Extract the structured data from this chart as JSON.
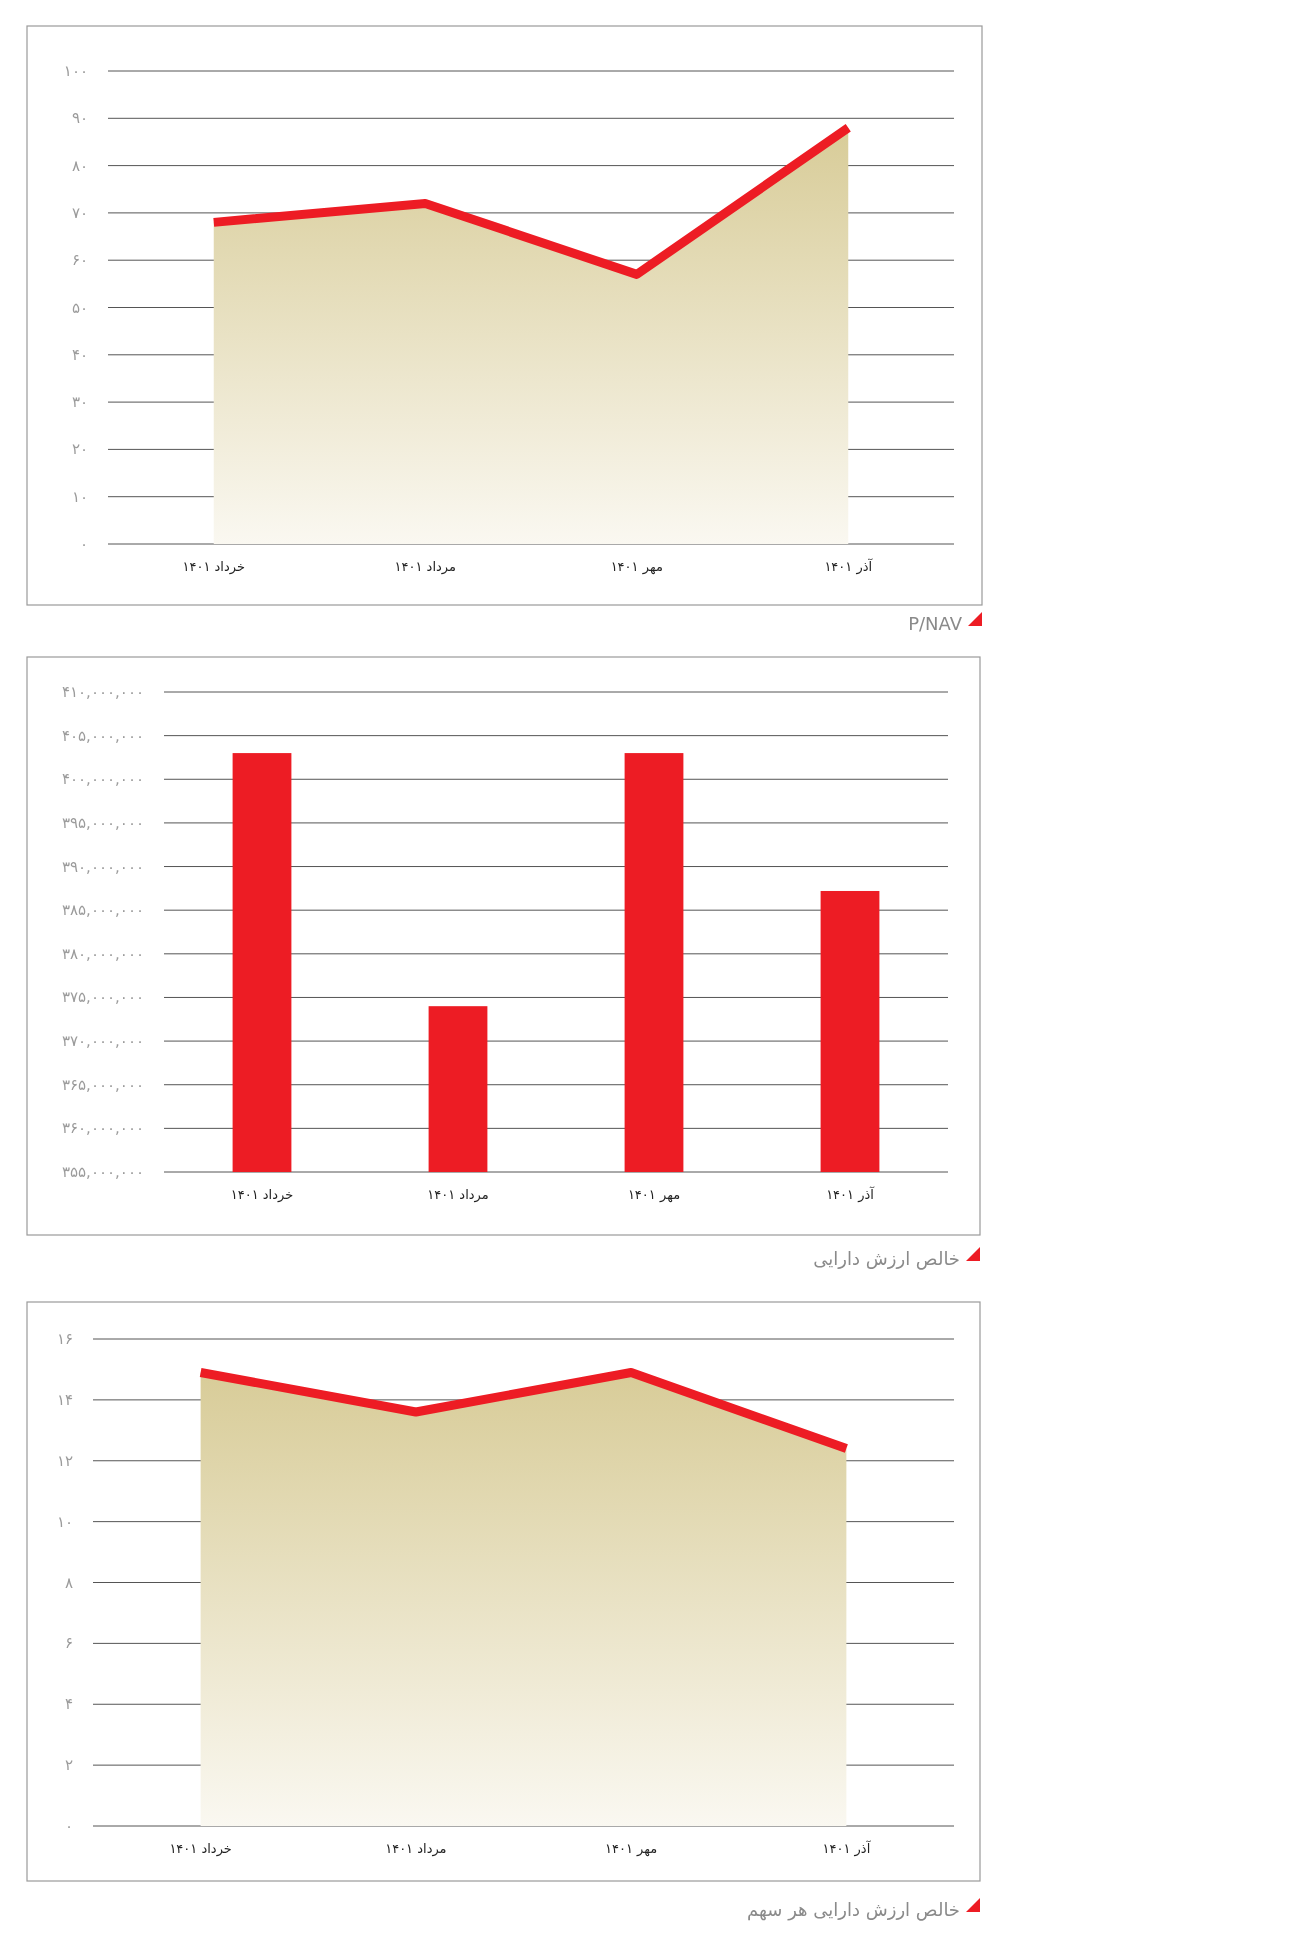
{
  "chart_data": [
    {
      "type": "area",
      "title": "P/NAV",
      "categories": [
        "خرداد ۱۴۰۱",
        "مرداد ۱۴۰۱",
        "مهر ۱۴۰۱",
        "آذر ۱۴۰۱"
      ],
      "series": [
        {
          "color": "#ed1c24",
          "values": [
            68,
            72,
            57,
            88
          ]
        }
      ],
      "ylim": [
        0,
        100
      ],
      "yticks": [
        {
          "value": 0,
          "label": "۰"
        },
        {
          "value": 10,
          "label": "۱۰"
        },
        {
          "value": 20,
          "label": "۲۰"
        },
        {
          "value": 30,
          "label": "۳۰"
        },
        {
          "value": 40,
          "label": "۴۰"
        },
        {
          "value": 50,
          "label": "۵۰"
        },
        {
          "value": 60,
          "label": "۶۰"
        },
        {
          "value": 70,
          "label": "۷۰"
        },
        {
          "value": 80,
          "label": "۸۰"
        },
        {
          "value": 90,
          "label": "۹۰"
        },
        {
          "value": 100,
          "label": "۱۰۰"
        }
      ],
      "grid": "y"
    },
    {
      "type": "bar",
      "title": "خالص ارزش دارایی",
      "categories": [
        "خرداد ۱۴۰۱",
        "مرداد ۱۴۰۱",
        "مهر ۱۴۰۱",
        "آذر ۱۴۰۱"
      ],
      "series": [
        {
          "color": "#ed1c24",
          "values": [
            403000000,
            374000000,
            403000000,
            387200000
          ]
        }
      ],
      "ylim": [
        355000000,
        410000000
      ],
      "yticks": [
        {
          "value": 355000000,
          "label": "۳۵۵,۰۰۰,۰۰۰"
        },
        {
          "value": 360000000,
          "label": "۳۶۰,۰۰۰,۰۰۰"
        },
        {
          "value": 365000000,
          "label": "۳۶۵,۰۰۰,۰۰۰"
        },
        {
          "value": 370000000,
          "label": "۳۷۰,۰۰۰,۰۰۰"
        },
        {
          "value": 375000000,
          "label": "۳۷۵,۰۰۰,۰۰۰"
        },
        {
          "value": 380000000,
          "label": "۳۸۰,۰۰۰,۰۰۰"
        },
        {
          "value": 385000000,
          "label": "۳۸۵,۰۰۰,۰۰۰"
        },
        {
          "value": 390000000,
          "label": "۳۹۰,۰۰۰,۰۰۰"
        },
        {
          "value": 395000000,
          "label": "۳۹۵,۰۰۰,۰۰۰"
        },
        {
          "value": 400000000,
          "label": "۴۰۰,۰۰۰,۰۰۰"
        },
        {
          "value": 405000000,
          "label": "۴۰۵,۰۰۰,۰۰۰"
        },
        {
          "value": 410000000,
          "label": "۴۱۰,۰۰۰,۰۰۰"
        }
      ],
      "grid": "y"
    },
    {
      "type": "area",
      "title": "خالص ارزش دارایی هر سهم",
      "categories": [
        "خرداد ۱۴۰۱",
        "مرداد ۱۴۰۱",
        "مهر ۱۴۰۱",
        "آذر ۱۴۰۱"
      ],
      "series": [
        {
          "color": "#ed1c24",
          "values": [
            14.9,
            13.6,
            14.9,
            12.4
          ]
        }
      ],
      "ylim": [
        0,
        16
      ],
      "yticks": [
        {
          "value": 0,
          "label": "۰"
        },
        {
          "value": 2,
          "label": "۲"
        },
        {
          "value": 4,
          "label": "۴"
        },
        {
          "value": 6,
          "label": "۶"
        },
        {
          "value": 8,
          "label": "۸"
        },
        {
          "value": 10,
          "label": "۱۰"
        },
        {
          "value": 12,
          "label": "۱۲"
        },
        {
          "value": 14,
          "label": "۱۴"
        },
        {
          "value": 16,
          "label": "۱۶"
        }
      ],
      "grid": "y"
    }
  ]
}
